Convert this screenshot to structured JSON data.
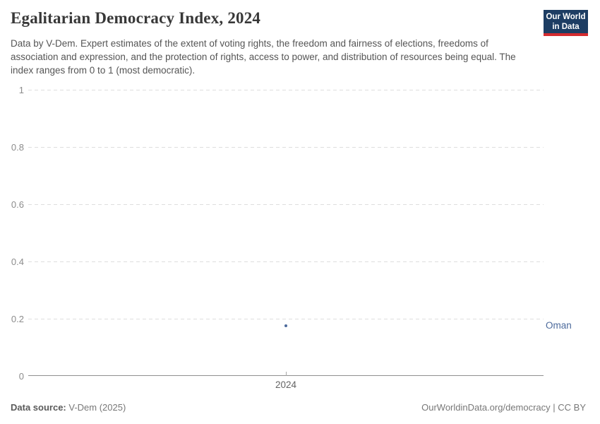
{
  "header": {
    "title": "Egalitarian Democracy Index, 2024",
    "subtitle": "Data by V-Dem. Expert estimates of the extent of voting rights, the freedom and fairness of elections, freedoms of association and expression, and the protection of rights, access to power, and distribution of resources being equal. The index ranges from 0 to 1 (most democratic).",
    "logo": {
      "line1": "Our World",
      "line2": "in Data",
      "bg_color": "#1d3d63",
      "stripe_color": "#d42b2f"
    }
  },
  "chart_data": {
    "type": "scatter",
    "title": "Egalitarian Democracy Index, 2024",
    "x": [
      2024
    ],
    "series": [
      {
        "name": "Oman",
        "values": [
          0.175
        ],
        "color": "#4c6a9c"
      }
    ],
    "xlabel": "",
    "ylabel": "",
    "ylim": [
      0,
      1
    ],
    "yticks": [
      0,
      0.2,
      0.4,
      0.6,
      0.8,
      1
    ],
    "xtick_labels": [
      "2024"
    ],
    "grid": "horizontal-dashed",
    "legend_position": "right-of-point-entity-label",
    "colors": {
      "gridline": "#dedede",
      "axis": "#909090",
      "tick_label": "#8c8c8c"
    }
  },
  "footer": {
    "source_label": "Data source:",
    "source_value": "V-Dem (2025)",
    "attribution": "OurWorldinData.org/democracy | CC BY"
  }
}
